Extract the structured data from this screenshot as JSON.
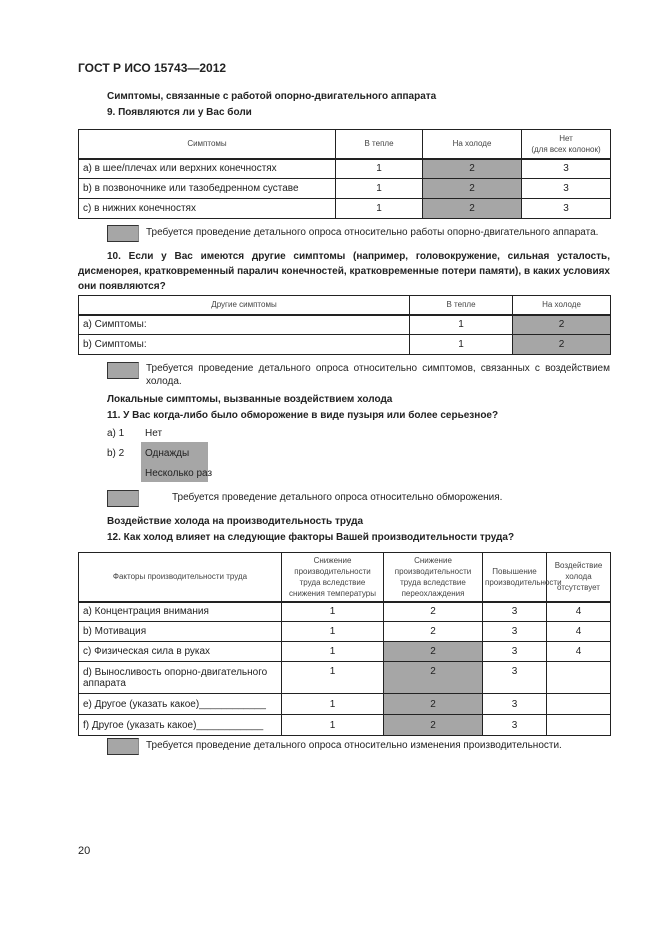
{
  "header": "ГОСТ Р ИСО 15743—2012",
  "page_number": "20",
  "highlight_color": "#a6a6a6",
  "s1": {
    "heading": "Симптомы, связанные с работой опорно-двигательного аппарата",
    "question": "9.  Появляются ли у Вас боли",
    "columns": [
      "Симптомы",
      "В тепле",
      "На холоде",
      "Нет",
      "(для всех колонок)"
    ],
    "rows": [
      [
        "а) в шее/плечах или верхних конечностях",
        "1",
        "2",
        "3"
      ],
      [
        "b) в позвоночнике или тазобедренном суставе",
        "1",
        "2",
        "3"
      ],
      [
        "с) в нижних конечностях",
        "1",
        "2",
        "3"
      ]
    ],
    "legend": "Требуется проведение детального опроса относительно работы опорно-двигательного аппарата."
  },
  "s2": {
    "question": "10. Если у Вас имеются другие симптомы (например, головокружение, сильная усталость, дисменорея, кратковременный паралич конечностей, кратковременные потери памяти), в каких условиях они появляются?",
    "columns": [
      "Другие симптомы",
      "В тепле",
      "На холоде"
    ],
    "rows": [
      [
        "а) Симптомы:",
        "1",
        "2"
      ],
      [
        "b) Симптомы:",
        "1",
        "2"
      ]
    ],
    "legend": "Требуется проведение детального опроса относительно симптомов, связанных с воздействием холода."
  },
  "s3": {
    "heading": "Локальные симптомы, вызванные воздействием холода",
    "question": "11.  У Вас когда-либо было обморожение в виде пузыря или более серьезное?",
    "options": [
      {
        "code": "а) 1",
        "label": "Нет"
      },
      {
        "code": "b) 2",
        "label": "Однажды"
      },
      {
        "code": "",
        "label": "Несколько раз"
      }
    ],
    "legend": "Требуется проведение детального опроса относительно обморожения."
  },
  "s4": {
    "heading": "Воздействие холода на производительность труда",
    "question": "12.  Как холод влияет на следующие факторы Вашей производительности труда?",
    "columns": [
      "Факторы производительности труда",
      "Снижение производительности труда вследствие снижения температуры",
      "Снижение производительности труда вследствие переохлаждения",
      "Повышение производительности",
      "Воздействие холода отсутствует"
    ],
    "rows": [
      [
        "а) Концентрация внимания",
        "1",
        "2",
        "3",
        "4"
      ],
      [
        "b) Мотивация",
        "1",
        "2",
        "3",
        "4"
      ],
      [
        "с) Физическая сила в руках",
        "1",
        "2",
        "3",
        "4"
      ],
      [
        "d) Выносливость опорно-двигательного аппарата",
        "1",
        "2",
        "3",
        ""
      ],
      [
        "е) Другое (указать какое)____________",
        "1",
        "2",
        "3",
        ""
      ],
      [
        "f) Другое (указать какое)____________",
        "1",
        "2",
        "3",
        ""
      ]
    ],
    "legend": "Требуется проведение детального опроса относительно изменения производительности."
  }
}
